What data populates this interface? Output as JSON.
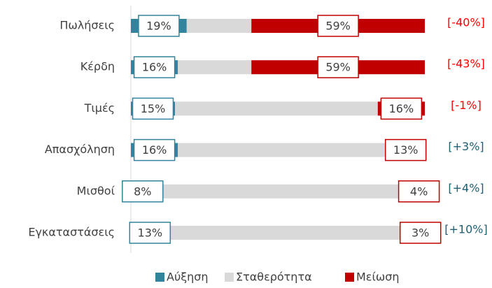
{
  "chart_data": {
    "type": "stacked_bar_horizontal",
    "categories": [
      "Πωλήσεις",
      "Κέρδη",
      "Τιμές",
      "Απασχόληση",
      "Μισθοί",
      "Εγκαταστάσεις"
    ],
    "series": [
      {
        "name": "Αύξηση",
        "color": "#31849b",
        "values": [
          19,
          16,
          15,
          16,
          8,
          13
        ],
        "value_labels": [
          "19%",
          "16%",
          "15%",
          "16%",
          "8%",
          "13%"
        ]
      },
      {
        "name": "Σταθερότητα",
        "color": "#d9d9d9",
        "values": [
          22,
          25,
          69,
          71,
          88,
          84
        ]
      },
      {
        "name": "Μείωση",
        "color": "#c00000",
        "values": [
          59,
          59,
          16,
          13,
          4,
          3
        ],
        "value_labels": [
          "59%",
          "59%",
          "16%",
          "13%",
          "4%",
          "3%"
        ]
      }
    ],
    "annotations": [
      {
        "text": "[-40%]",
        "color": "#ff0000"
      },
      {
        "text": "[-43%]",
        "color": "#ff0000"
      },
      {
        "text": "[-1%]",
        "color": "#ff0000"
      },
      {
        "text": "[+3%]",
        "color": "#1f5f73"
      },
      {
        "text": "[+4%]",
        "color": "#1f5f73"
      },
      {
        "text": "[+10%]",
        "color": "#1f5f73"
      }
    ],
    "xlim": [
      0,
      100
    ]
  }
}
